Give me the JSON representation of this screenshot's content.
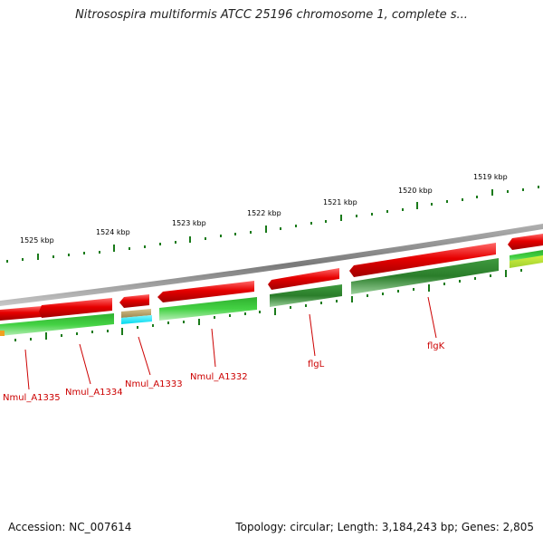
{
  "title": "Nitrosospira multiformis ATCC 25196 chromosome 1, complete s...",
  "footer": {
    "accession": "Accession: NC_007614",
    "summary": "Topology: circular; Length: 3,184,243 bp; Genes: 2,805"
  },
  "ruler": {
    "labels": [
      "1525 kbp",
      "1524 kbp",
      "1523 kbp",
      "1522 kbp",
      "1521 kbp",
      "1520 kbp",
      "1519 kbp"
    ]
  },
  "genes": [
    "Nmul_A1335",
    "Nmul_A1334",
    "Nmul_A1333",
    "Nmul_A1332",
    "flgL",
    "flgK"
  ],
  "colors": {
    "backbone": "#8c8c8c",
    "forward_gene": "#e00000",
    "reverse_gene_dark": "#2e8b2e",
    "reverse_gene_light": "#3ccc3c",
    "tick": "#1a7a1a",
    "label": "#cc0000",
    "cyan_feature": "#00e0f0",
    "tan_feature": "#b8a060"
  }
}
